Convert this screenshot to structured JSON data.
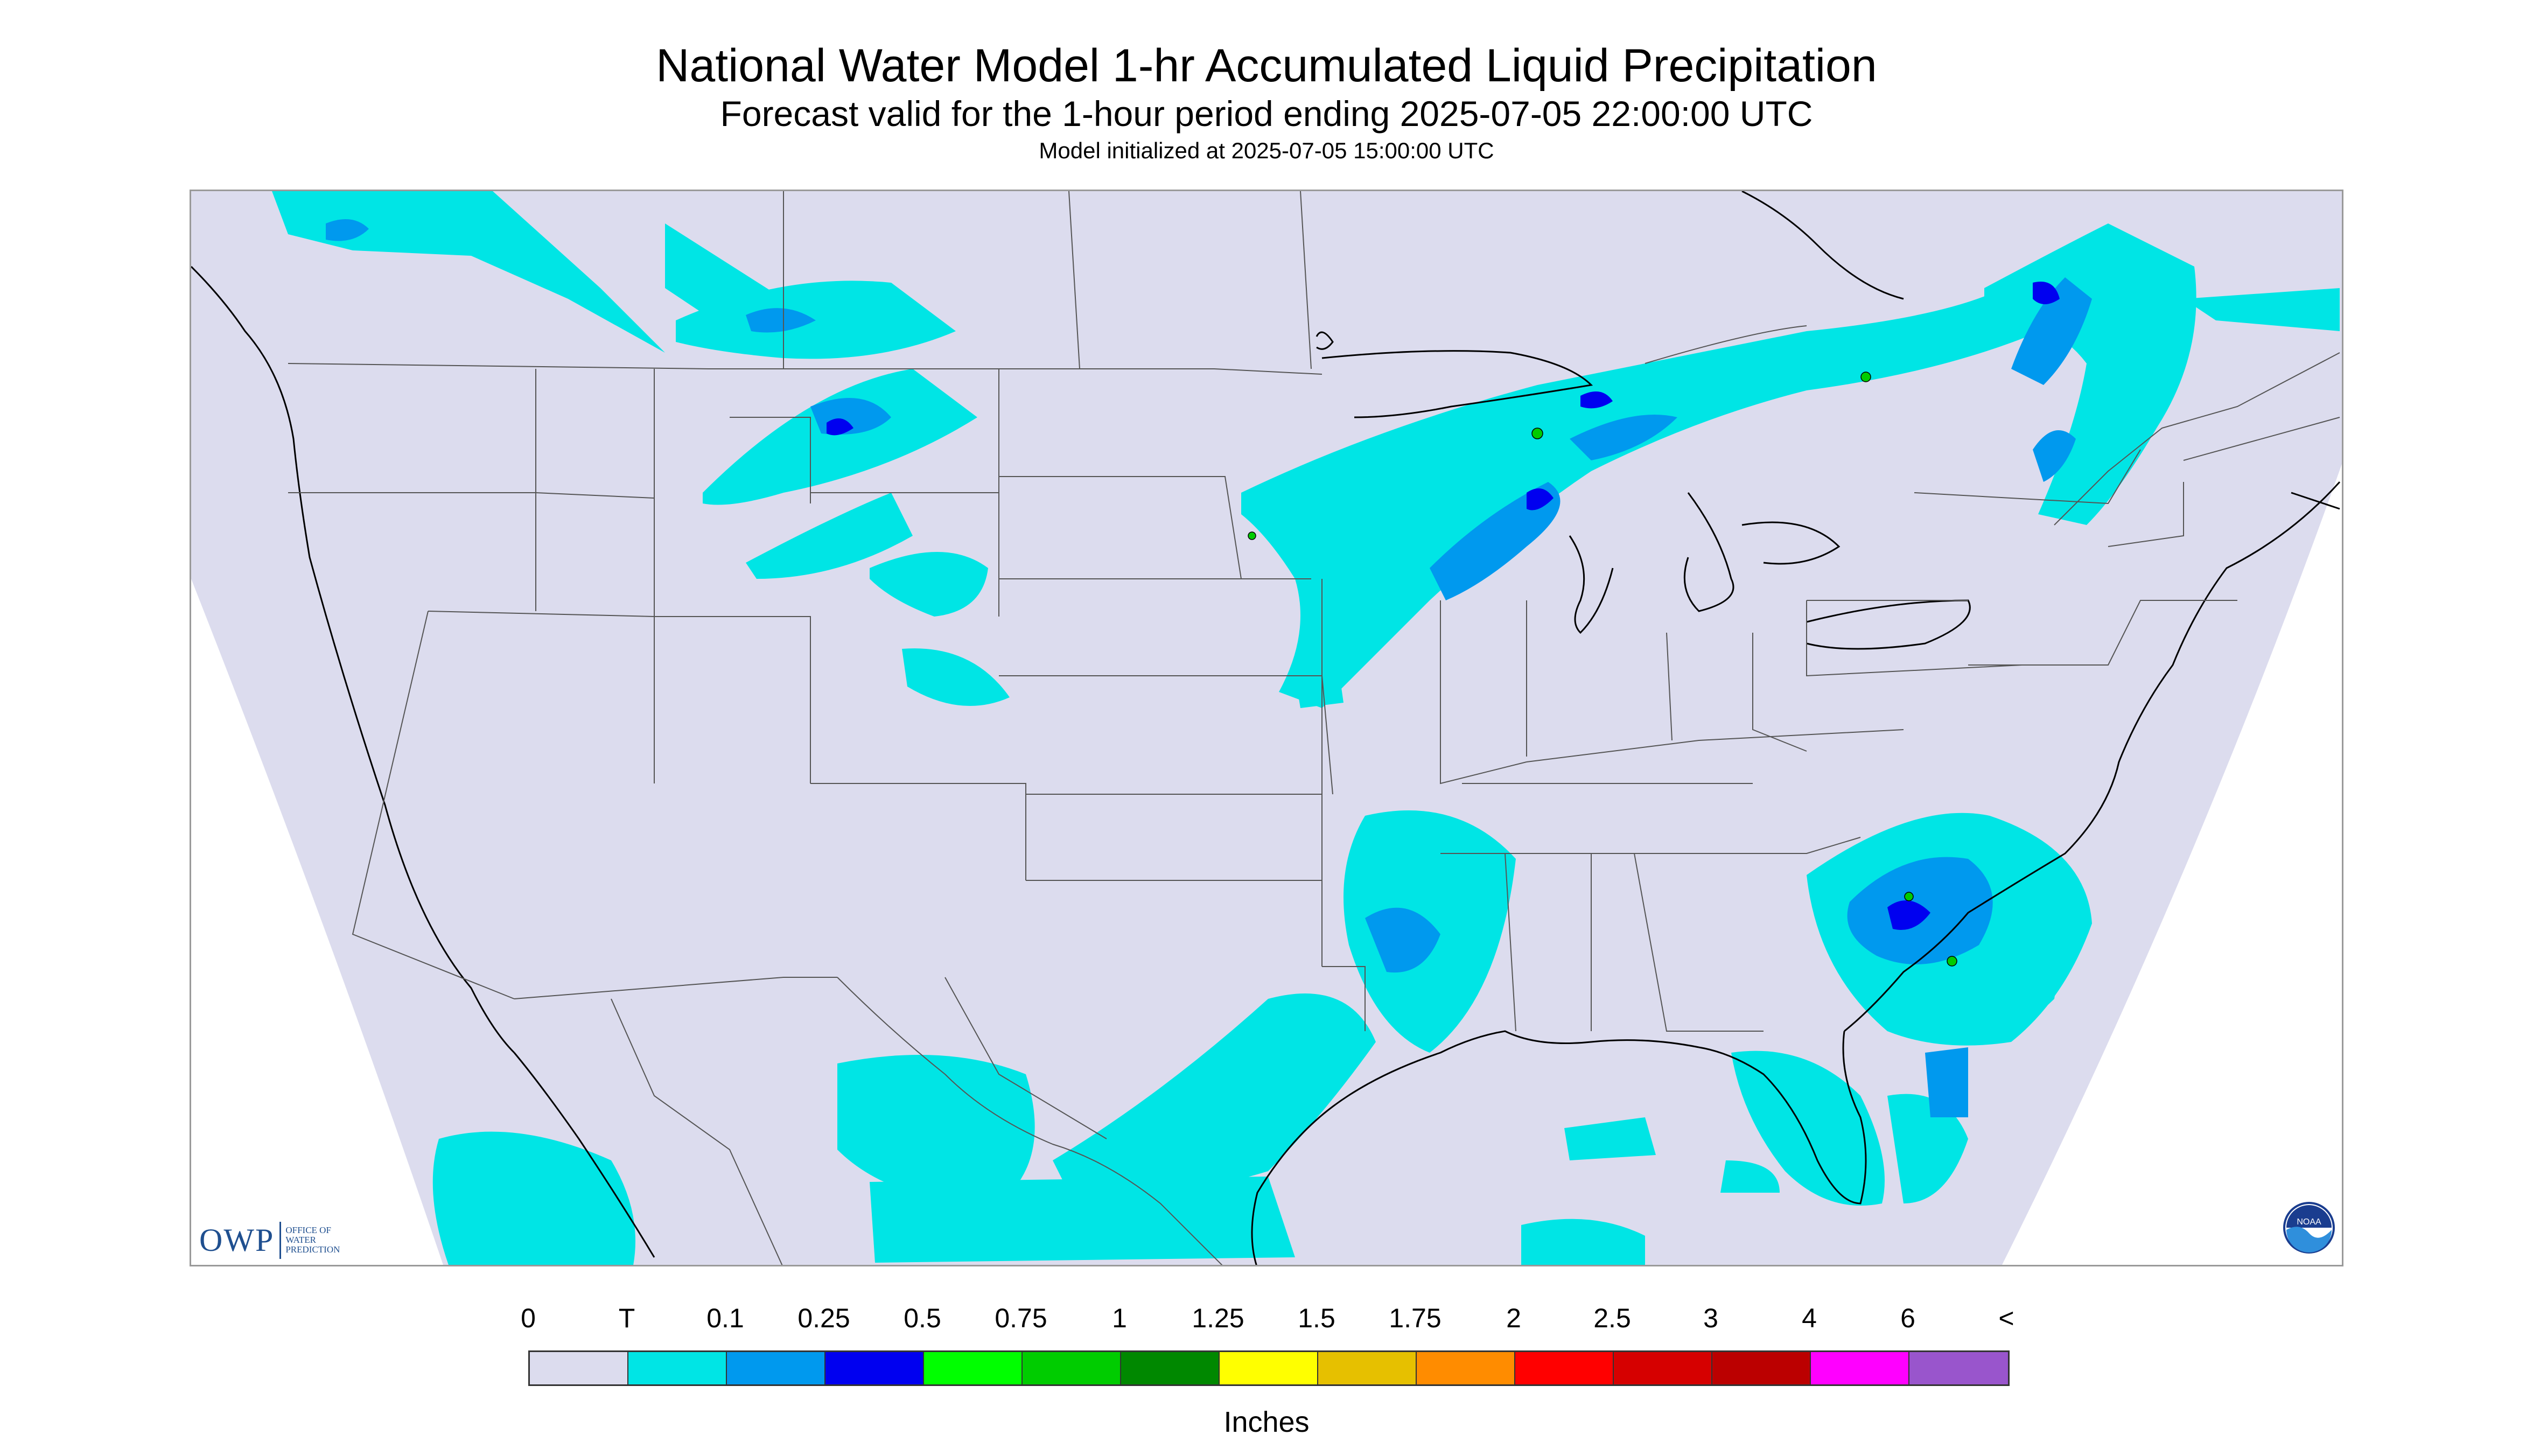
{
  "header": {
    "title": "National Water Model 1-hr Accumulated Liquid Precipitation",
    "subtitle": "Forecast valid for the 1-hour period ending 2025-07-05 22:00:00 UTC",
    "init": "Model initialized at 2025-07-05 15:00:00 UTC"
  },
  "map": {
    "background_color": "#dcdcee",
    "outside_domain_color": "#ffffff",
    "boundary_color": "#555555",
    "coast_color": "#000000"
  },
  "logos": {
    "owp_mark": "OWP",
    "owp_text": "Office of Water Prediction",
    "noaa_text": "NOAA"
  },
  "legend": {
    "labels": [
      "0",
      "T",
      "0.1",
      "0.25",
      "0.5",
      "0.75",
      "1",
      "1.25",
      "1.5",
      "1.75",
      "2",
      "2.5",
      "3",
      "4",
      "6",
      "<"
    ],
    "colors": [
      "#dcdcee",
      "#00e5e5",
      "#0099ee",
      "#0000f0",
      "#00ff00",
      "#00cc00",
      "#008800",
      "#ffff00",
      "#e6c000",
      "#ff8c00",
      "#ff0000",
      "#d60000",
      "#bb0000",
      "#ff00ff",
      "#9955cc"
    ],
    "units": "Inches"
  }
}
